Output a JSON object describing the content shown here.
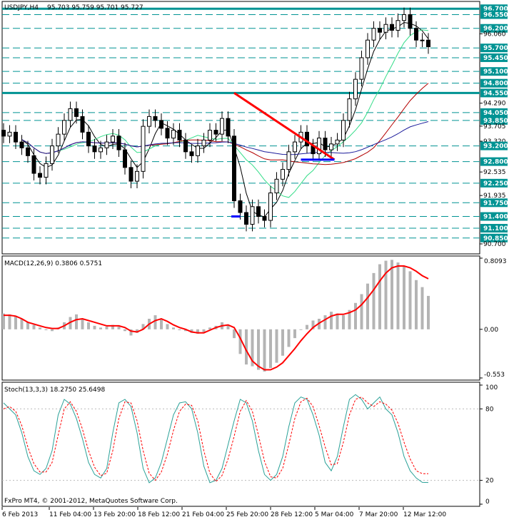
{
  "header": {
    "symbol": "USDJPY,H4",
    "ohlc": "95.703 95.759 95.701 95.727"
  },
  "copyright": "FxPro MT4, © 2001-2012, MetaQuotes Software Corp.",
  "colors": {
    "bullish_candle": "#000000",
    "level_lines": "#009393",
    "trend_line": "#ff0000",
    "support_line": "#0000ff",
    "ma_black": "#000000",
    "ma_red": "#b40000",
    "ma_blue": "#1a1a9a",
    "ma_green": "#33dd88",
    "macd_hist": "#b4b4b4",
    "macd_signal": "#ff0000",
    "stoch_main": "#2aa198",
    "stoch_signal": "#ff0000",
    "badge_bg": "#009393"
  },
  "chart_data": [
    {
      "name": "price",
      "type": "candlestick",
      "ylim": [
        90.5,
        96.85
      ],
      "price_labels": [
        "96.700",
        "96.550",
        "96.200",
        "96.060",
        "95.700",
        "95.450",
        "95.100",
        "94.800",
        "94.550",
        "94.290",
        "94.050",
        "93.850",
        "93.705",
        "93.320",
        "93.200",
        "92.800",
        "92.535",
        "92.250",
        "91.935",
        "91.750",
        "91.400",
        "91.100",
        "90.850",
        "90.700"
      ],
      "highlighted_levels": [
        96.7,
        96.55,
        96.2,
        95.7,
        95.45,
        95.1,
        94.8,
        94.55,
        94.05,
        93.85,
        93.2,
        92.8,
        92.25,
        91.75,
        91.4,
        91.1,
        90.85
      ],
      "axis_ticks": [
        96.06,
        94.29,
        93.705,
        92.535,
        91.935
      ],
      "thick_levels": [
        96.7,
        94.55
      ],
      "trend_line": {
        "from": [
          "21 Feb 08:00",
          94.55
        ],
        "to": [
          "5 Mar 12:00",
          92.85
        ]
      },
      "support_lines": [
        {
          "from": [
            "25 Feb 00:00",
            91.4
          ],
          "to": [
            "26 Feb 08:00",
            91.4
          ]
        },
        {
          "from": [
            "28 Feb 08:00",
            92.85
          ],
          "to": [
            "5 Mar 12:00",
            92.85
          ]
        }
      ],
      "close_approx": [
        93.45,
        93.55,
        93.3,
        93.15,
        92.95,
        92.5,
        92.4,
        92.75,
        93.2,
        93.5,
        93.85,
        94.15,
        93.95,
        93.55,
        93.2,
        93.05,
        93.15,
        93.3,
        93.45,
        93.1,
        92.65,
        92.3,
        92.55,
        93.7,
        93.95,
        93.85,
        93.65,
        93.4,
        93.6,
        93.35,
        93.05,
        92.95,
        93.2,
        93.35,
        93.6,
        93.5,
        93.9,
        93.45,
        91.8,
        91.5,
        91.2,
        91.65,
        91.4,
        91.3,
        92.0,
        92.35,
        92.6,
        93.05,
        93.3,
        93.55,
        93.2,
        93.0,
        93.4,
        93.1,
        93.25,
        93.35,
        93.85,
        94.4,
        94.9,
        95.45,
        95.9,
        96.2,
        96.1,
        96.3,
        96.15,
        96.4,
        96.55,
        96.2,
        95.9,
        95.9,
        95.73
      ]
    },
    {
      "name": "macd",
      "type": "bar",
      "title": "MACD(12,26,9) 0.3806 0.5751",
      "params": "(12,26,9)",
      "values_label": "0.3806 0.5751",
      "ylim": [
        -0.553,
        0.8093
      ],
      "ticks": [
        "0.8093",
        "0.00",
        "-0.553"
      ],
      "histogram": [
        0.18,
        0.17,
        0.15,
        0.12,
        0.08,
        0.05,
        0.02,
        -0.01,
        -0.02,
        0.02,
        0.08,
        0.14,
        0.17,
        0.12,
        0.08,
        0.04,
        0.02,
        0.03,
        0.05,
        0.03,
        -0.02,
        -0.07,
        -0.04,
        0.06,
        0.12,
        0.16,
        0.12,
        0.06,
        0.02,
        -0.01,
        -0.02,
        -0.04,
        -0.05,
        -0.03,
        0.02,
        0.04,
        0.08,
        0.05,
        -0.1,
        -0.28,
        -0.4,
        -0.42,
        -0.46,
        -0.48,
        -0.44,
        -0.38,
        -0.3,
        -0.2,
        -0.1,
        0.0,
        0.05,
        0.1,
        0.12,
        0.16,
        0.2,
        0.18,
        0.16,
        0.22,
        0.3,
        0.4,
        0.52,
        0.64,
        0.74,
        0.78,
        0.79,
        0.76,
        0.72,
        0.66,
        0.56,
        0.48,
        0.38
      ],
      "signal": [
        0.16,
        0.16,
        0.15,
        0.12,
        0.08,
        0.06,
        0.04,
        0.02,
        0.01,
        0.01,
        0.04,
        0.08,
        0.11,
        0.12,
        0.1,
        0.08,
        0.06,
        0.04,
        0.04,
        0.04,
        0.02,
        -0.02,
        -0.03,
        0.0,
        0.06,
        0.1,
        0.12,
        0.09,
        0.05,
        0.02,
        0.0,
        -0.03,
        -0.04,
        -0.04,
        -0.01,
        0.02,
        0.04,
        0.05,
        0.02,
        -0.1,
        -0.24,
        -0.36,
        -0.42,
        -0.46,
        -0.46,
        -0.43,
        -0.38,
        -0.3,
        -0.22,
        -0.13,
        -0.05,
        0.02,
        0.07,
        0.11,
        0.15,
        0.17,
        0.17,
        0.19,
        0.22,
        0.28,
        0.36,
        0.45,
        0.55,
        0.64,
        0.7,
        0.72,
        0.72,
        0.7,
        0.66,
        0.61,
        0.575
      ]
    },
    {
      "name": "stochastic",
      "type": "line",
      "title": "Stoch(13,3,3) 18.2750 25.6498",
      "params": "(13,3,3)",
      "values_label": "18.2750 25.6498",
      "ylim": [
        0,
        100
      ],
      "ticks": [
        "100",
        "80",
        "20",
        "0"
      ],
      "main": [
        85,
        80,
        75,
        60,
        40,
        28,
        25,
        30,
        45,
        75,
        88,
        84,
        72,
        55,
        35,
        25,
        22,
        30,
        60,
        85,
        88,
        82,
        60,
        30,
        18,
        22,
        35,
        55,
        75,
        85,
        86,
        80,
        60,
        32,
        18,
        20,
        30,
        50,
        70,
        88,
        85,
        70,
        45,
        25,
        20,
        25,
        40,
        65,
        85,
        90,
        88,
        75,
        58,
        35,
        28,
        40,
        65,
        88,
        92,
        88,
        80,
        85,
        90,
        80,
        75,
        60,
        40,
        28,
        22,
        18.3,
        18.2
      ],
      "signal": [
        80,
        82,
        78,
        66,
        48,
        34,
        27,
        27,
        35,
        58,
        80,
        86,
        78,
        63,
        45,
        31,
        24,
        26,
        45,
        72,
        86,
        85,
        70,
        45,
        26,
        20,
        27,
        42,
        62,
        78,
        84,
        83,
        70,
        45,
        26,
        19,
        24,
        38,
        57,
        78,
        87,
        78,
        58,
        36,
        23,
        22,
        30,
        50,
        72,
        86,
        89,
        82,
        66,
        48,
        33,
        34,
        52,
        75,
        88,
        90,
        85,
        82,
        86,
        84,
        79,
        68,
        52,
        38,
        28,
        25.6,
        25.6
      ]
    }
  ],
  "x_axis": {
    "ticks": [
      "6 Feb 2013",
      "11 Feb 04:00",
      "13 Feb 20:00",
      "18 Feb 12:00",
      "21 Feb 04:00",
      "25 Feb 20:00",
      "28 Feb 12:00",
      "5 Mar 04:00",
      "7 Mar 20:00",
      "12 Mar 12:00"
    ]
  }
}
